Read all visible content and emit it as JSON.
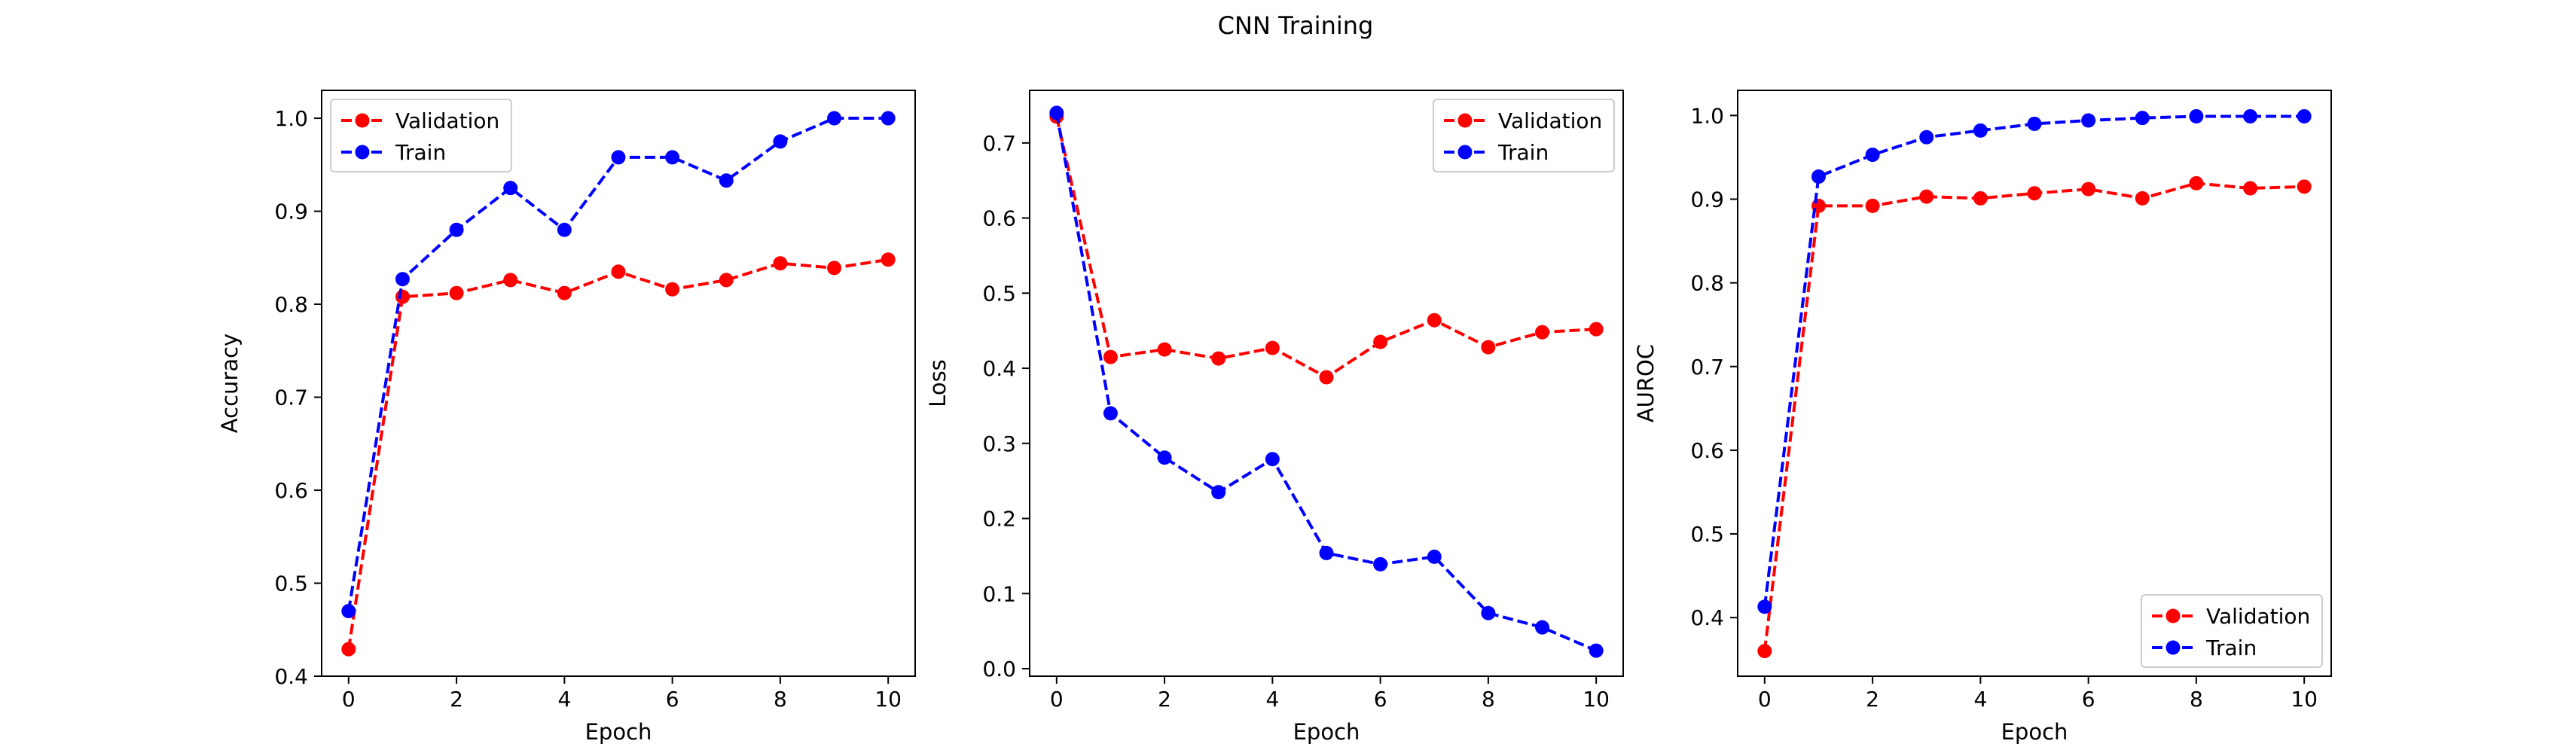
{
  "title": "CNN Training",
  "colors": {
    "validation": "#ff0000",
    "train": "#0000ff",
    "axes": "#000000",
    "background": "#ffffff"
  },
  "chart_data": [
    {
      "type": "line",
      "xlabel": "Epoch",
      "ylabel": "Accuracy",
      "xlim": [
        -0.5,
        10.5
      ],
      "ylim": [
        0.4,
        1.03
      ],
      "xticks": [
        0,
        2,
        4,
        6,
        8,
        10
      ],
      "yticks": [
        0.4,
        0.5,
        0.6,
        0.7,
        0.8,
        0.9,
        1.0
      ],
      "ytick_labels": [
        "0.4",
        "0.5",
        "0.6",
        "0.7",
        "0.8",
        "0.9",
        "1.0"
      ],
      "grid": false,
      "legend_position": "top-left",
      "x": [
        0,
        1,
        2,
        3,
        4,
        5,
        6,
        7,
        8,
        9,
        10
      ],
      "series": [
        {
          "name": "Validation",
          "color_key": "validation",
          "marker": "circle",
          "linestyle": "dashed",
          "values": [
            0.429,
            0.808,
            0.812,
            0.826,
            0.812,
            0.835,
            0.816,
            0.826,
            0.844,
            0.839,
            0.848
          ]
        },
        {
          "name": "Train",
          "color_key": "train",
          "marker": "circle",
          "linestyle": "dashed",
          "values": [
            0.47,
            0.827,
            0.88,
            0.925,
            0.88,
            0.958,
            0.958,
            0.933,
            0.975,
            1.0,
            1.0
          ]
        }
      ]
    },
    {
      "type": "line",
      "xlabel": "Epoch",
      "ylabel": "Loss",
      "xlim": [
        -0.5,
        10.5
      ],
      "ylim": [
        -0.01,
        0.77
      ],
      "xticks": [
        0,
        2,
        4,
        6,
        8,
        10
      ],
      "yticks": [
        0.0,
        0.1,
        0.2,
        0.3,
        0.4,
        0.5,
        0.6,
        0.7
      ],
      "ytick_labels": [
        "0.0",
        "0.1",
        "0.2",
        "0.3",
        "0.4",
        "0.5",
        "0.6",
        "0.7"
      ],
      "grid": false,
      "legend_position": "top-right",
      "x": [
        0,
        1,
        2,
        3,
        4,
        5,
        6,
        7,
        8,
        9,
        10
      ],
      "series": [
        {
          "name": "Validation",
          "color_key": "validation",
          "marker": "circle",
          "linestyle": "dashed",
          "values": [
            0.735,
            0.415,
            0.425,
            0.413,
            0.427,
            0.388,
            0.435,
            0.464,
            0.428,
            0.448,
            0.452
          ]
        },
        {
          "name": "Train",
          "color_key": "train",
          "marker": "circle",
          "linestyle": "dashed",
          "values": [
            0.74,
            0.34,
            0.281,
            0.235,
            0.279,
            0.154,
            0.139,
            0.149,
            0.074,
            0.055,
            0.024
          ]
        }
      ]
    },
    {
      "type": "line",
      "xlabel": "Epoch",
      "ylabel": "AUROC",
      "xlim": [
        -0.5,
        10.5
      ],
      "ylim": [
        0.33,
        1.03
      ],
      "xticks": [
        0,
        2,
        4,
        6,
        8,
        10
      ],
      "yticks": [
        0.4,
        0.5,
        0.6,
        0.7,
        0.8,
        0.9,
        1.0
      ],
      "ytick_labels": [
        "0.4",
        "0.5",
        "0.6",
        "0.7",
        "0.8",
        "0.9",
        "1.0"
      ],
      "grid": false,
      "legend_position": "bottom-right",
      "x": [
        0,
        1,
        2,
        3,
        4,
        5,
        6,
        7,
        8,
        9,
        10
      ],
      "series": [
        {
          "name": "Validation",
          "color_key": "validation",
          "marker": "circle",
          "linestyle": "dashed",
          "values": [
            0.36,
            0.892,
            0.892,
            0.903,
            0.901,
            0.907,
            0.912,
            0.901,
            0.919,
            0.913,
            0.915
          ]
        },
        {
          "name": "Train",
          "color_key": "train",
          "marker": "circle",
          "linestyle": "dashed",
          "values": [
            0.413,
            0.927,
            0.953,
            0.974,
            0.982,
            0.99,
            0.994,
            0.997,
            0.999,
            0.999,
            0.999
          ]
        }
      ]
    }
  ]
}
